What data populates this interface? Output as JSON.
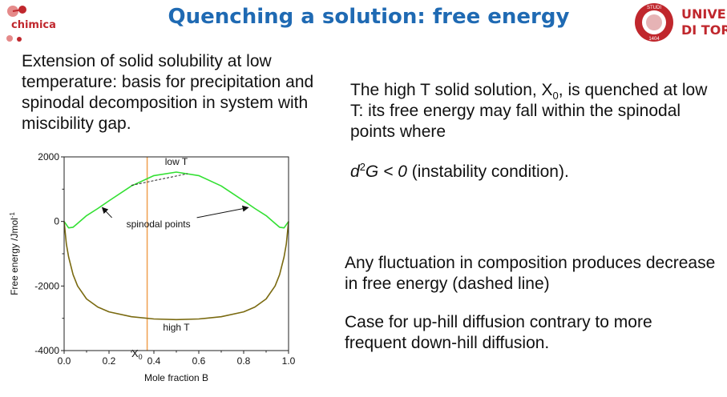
{
  "header": {
    "logo_left_text": "chimica",
    "title": "Quenching a solution: free energy",
    "logo_right_text_line1": "UNIVERSITÀ",
    "logo_right_text_line2": "DI TORINO",
    "seal_text": "STUDI",
    "seal_year": "1404"
  },
  "left_text": "Extension of solid solubility at low temperature: basis for precipitation and spinodal decomposition in system with miscibility gap.",
  "right": {
    "p1_a": "The high T solid solution, X",
    "p1_sub": "0",
    "p1_b": ", is quenched at low T: its free energy may fall within the spinodal points where",
    "cond_d": "d",
    "cond_sup": "2",
    "cond_G": "G < 0",
    "cond_rest": " (instability condition).",
    "p2": "Any fluctuation in composition produces decrease in free energy (dashed line)",
    "p3_line1": "Case for up-hill diffusion contrary to more",
    "p3_line2": "frequent down-hill diffusion."
  },
  "colors": {
    "title": "#1f6ab3",
    "brand_red": "#c0272d",
    "low_t_curve": "#33e033",
    "high_t_curve": "#7a6a10",
    "x0_line": "#f0a050"
  },
  "chart_data": {
    "type": "line",
    "xlabel": "Mole fraction B",
    "ylabel": "Free energy /Jmol",
    "ylabel_sup": "-1",
    "xlim": [
      0.0,
      1.0
    ],
    "ylim": [
      -4000,
      2000
    ],
    "x_ticks": [
      "0.0",
      "0.2",
      "0.4",
      "0.6",
      "0.8",
      "1.0"
    ],
    "y_ticks": [
      "2000",
      "0",
      "-2000",
      "-4000"
    ],
    "x0_label": "X",
    "x0_sub": "0",
    "x0_value": 0.37,
    "annotations": {
      "low_t": "low T",
      "high_t": "high T",
      "spinodal": "spinodal points"
    },
    "spinodal_points": [
      {
        "x": 0.17,
        "y": 430
      },
      {
        "x": 0.82,
        "y": 430
      }
    ],
    "tangent_line": {
      "x": [
        0.3,
        0.55
      ],
      "y": [
        1120,
        1480
      ]
    },
    "series": [
      {
        "name": "low T",
        "x": [
          0.0,
          0.02,
          0.04,
          0.06,
          0.1,
          0.15,
          0.2,
          0.3,
          0.4,
          0.5,
          0.6,
          0.7,
          0.8,
          0.85,
          0.9,
          0.94,
          0.96,
          0.98,
          1.0
        ],
        "y": [
          0,
          -200,
          -180,
          -60,
          180,
          400,
          640,
          1100,
          1420,
          1530,
          1420,
          1100,
          640,
          400,
          180,
          -60,
          -180,
          -200,
          0
        ]
      },
      {
        "name": "high T",
        "x": [
          0.0,
          0.01,
          0.02,
          0.04,
          0.06,
          0.1,
          0.15,
          0.2,
          0.3,
          0.4,
          0.5,
          0.6,
          0.7,
          0.8,
          0.85,
          0.9,
          0.94,
          0.96,
          0.98,
          0.99,
          1.0
        ],
        "y": [
          0,
          -700,
          -1100,
          -1650,
          -2000,
          -2400,
          -2650,
          -2800,
          -2950,
          -3020,
          -3040,
          -3020,
          -2950,
          -2800,
          -2650,
          -2400,
          -2000,
          -1650,
          -1100,
          -700,
          0
        ]
      }
    ]
  }
}
